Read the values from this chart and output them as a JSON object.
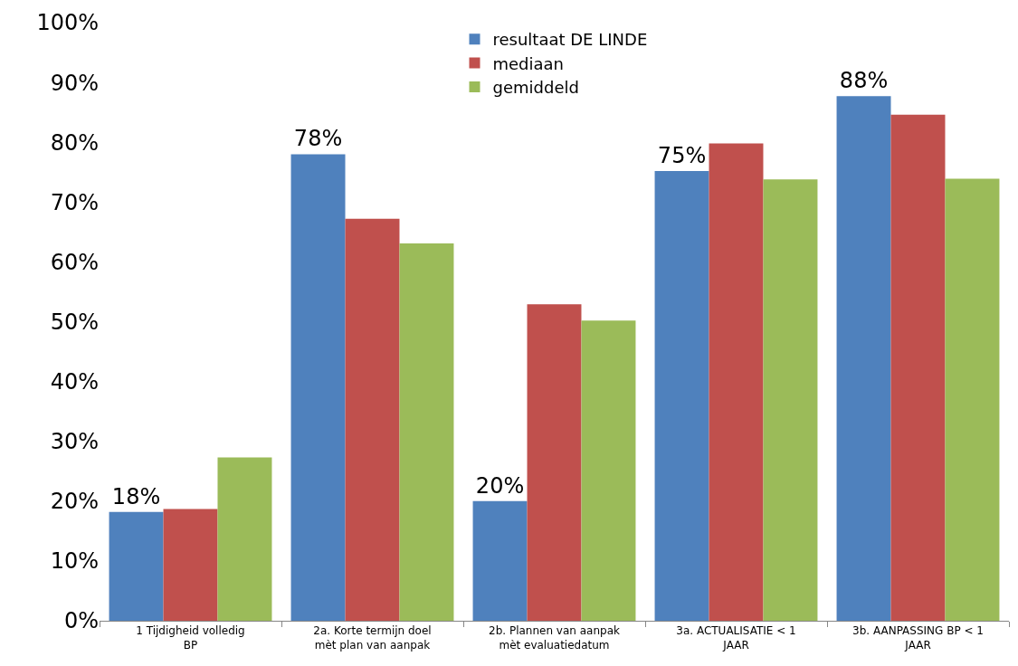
{
  "chart_data": {
    "type": "bar",
    "categories": [
      "1 Tijdigheid volledig BP",
      "2a. Korte termijn doel mèt plan van aanpak",
      "2b. Plannen van aanpak mèt evaluatiedatum",
      "3a. ACTUALISATIE < 1 JAAR",
      "3b. AANPASSING BP < 1 JAAR"
    ],
    "series": [
      {
        "name": "resultaat DE LINDE",
        "color": "#4f81bd",
        "values": [
          18.2,
          78,
          20,
          75.2,
          87.7
        ],
        "value_labels": [
          "18%",
          "78%",
          "20%",
          "75%",
          "88%"
        ]
      },
      {
        "name": "mediaan",
        "color": "#c0504d",
        "values": [
          18.7,
          67.2,
          52.9,
          79.8,
          84.6
        ]
      },
      {
        "name": "gemiddeld",
        "color": "#9bbb59",
        "values": [
          27.3,
          63.1,
          50.2,
          73.8,
          73.9
        ]
      }
    ],
    "ylim": [
      0,
      100
    ],
    "yticks": [
      {
        "value": 0,
        "label": "0%"
      },
      {
        "value": 10,
        "label": "10%"
      },
      {
        "value": 20,
        "label": "20%"
      },
      {
        "value": 30,
        "label": "30%"
      },
      {
        "value": 40,
        "label": "40%"
      },
      {
        "value": 50,
        "label": "50%"
      },
      {
        "value": 60,
        "label": "60%"
      },
      {
        "value": 70,
        "label": "70%"
      },
      {
        "value": 80,
        "label": "80%"
      },
      {
        "value": 90,
        "label": "90%"
      },
      {
        "value": 100,
        "label": "100%"
      }
    ],
    "grid": false,
    "legend": "top"
  }
}
